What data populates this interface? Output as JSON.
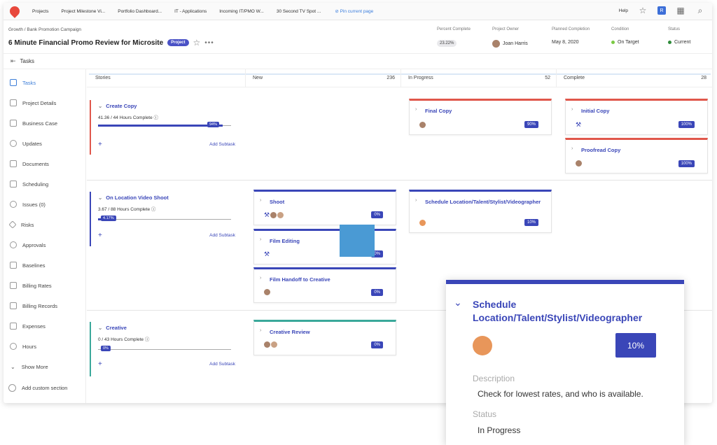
{
  "topbar": {
    "tabs": [
      "Projects",
      "Project Milestone Vi...",
      "Portfolio Dashboard...",
      "IT - Applications",
      "Incoming IT/PMO W...",
      "30 Second TV Spot ..."
    ],
    "pin_label": "Pin current page",
    "help_label": "Help",
    "user_initial": "R"
  },
  "header": {
    "breadcrumb": "Growth  /  Bank Promotion Campaign",
    "title": "6 Minute Financial Promo Review for Microsite",
    "badge": "Project",
    "percent_complete_label": "Percent Complete",
    "percent_complete_value": "23.22%",
    "owner_label": "Project Owner",
    "owner_value": "Joan Harris",
    "planned_label": "Planned Completion",
    "planned_value": "May 8, 2020",
    "condition_label": "Condition",
    "condition_value": "On Target",
    "status_label": "Status",
    "status_value": "Current",
    "colors": {
      "condition": "#7ac943",
      "status": "#2e8b3a",
      "brand": "#e8483c",
      "accent": "#3a46b8"
    }
  },
  "tasksbar": {
    "label": "Tasks"
  },
  "sidebar": {
    "items": [
      {
        "label": "Tasks",
        "icon": "tasks-icon",
        "active": true
      },
      {
        "label": "Project Details",
        "icon": "details-icon"
      },
      {
        "label": "Business Case",
        "icon": "business-case-icon"
      },
      {
        "label": "Updates",
        "icon": "updates-icon"
      },
      {
        "label": "Documents",
        "icon": "documents-icon"
      },
      {
        "label": "Scheduling",
        "icon": "calendar-icon"
      },
      {
        "label": "Issues (0)",
        "icon": "issues-icon"
      },
      {
        "label": "Risks",
        "icon": "risks-icon"
      },
      {
        "label": "Approvals",
        "icon": "approvals-icon"
      },
      {
        "label": "Baselines",
        "icon": "baselines-icon"
      },
      {
        "label": "Billing Rates",
        "icon": "billing-rates-icon"
      },
      {
        "label": "Billing Records",
        "icon": "billing-records-icon"
      },
      {
        "label": "Expenses",
        "icon": "expenses-icon"
      },
      {
        "label": "Hours",
        "icon": "clock-icon"
      },
      {
        "label": "Show More",
        "icon": "chevron-down-icon"
      },
      {
        "label": "Add custom section",
        "icon": "plus-circle-icon"
      }
    ]
  },
  "board": {
    "columns": [
      {
        "label": "Stories",
        "count": ""
      },
      {
        "label": "New",
        "count": "236"
      },
      {
        "label": "In Progress",
        "count": "52"
      },
      {
        "label": "Complete",
        "count": "28"
      }
    ],
    "stories": [
      {
        "name": "Create Copy",
        "hours": "41.36 / 44 Hours Complete",
        "pct": "94%",
        "progress": 0.94,
        "color": "#e0574b",
        "add": "Add Subtask"
      },
      {
        "name": "On Location Video Shoot",
        "hours": "3.67 / 88 Hours Complete",
        "pct": "4.17%",
        "progress": 0.0417,
        "color": "#3a46b8",
        "add": "Add Subtask"
      },
      {
        "name": "Creative",
        "hours": "0 / 43 Hours Complete",
        "pct": "0%",
        "progress": 0,
        "color": "#3aa89a",
        "add": "Add Subtask"
      }
    ],
    "cards": {
      "final_copy": {
        "name": "Final Copy",
        "pct": "90%"
      },
      "initial_copy": {
        "name": "Initial Copy",
        "pct": "100%"
      },
      "proofread_copy": {
        "name": "Proofread Copy",
        "pct": "100%"
      },
      "shoot": {
        "name": "Shoot",
        "pct": "0%"
      },
      "film_editing": {
        "name": "Film Editing",
        "pct": "0%"
      },
      "film_handoff": {
        "name": "Film Handoff to Creative",
        "pct": "0%"
      },
      "schedule": {
        "name": "Schedule Location/Talent/Stylist/Videographer",
        "pct": "10%"
      },
      "creative_review": {
        "name": "Creative Review",
        "pct": "0%"
      }
    }
  },
  "popup": {
    "title": "Schedule Location/Talent/Stylist/Videographer",
    "pct": "10%",
    "description_label": "Description",
    "description": "Check for lowest rates, and who is available.",
    "status_label": "Status",
    "status": "In Progress"
  }
}
